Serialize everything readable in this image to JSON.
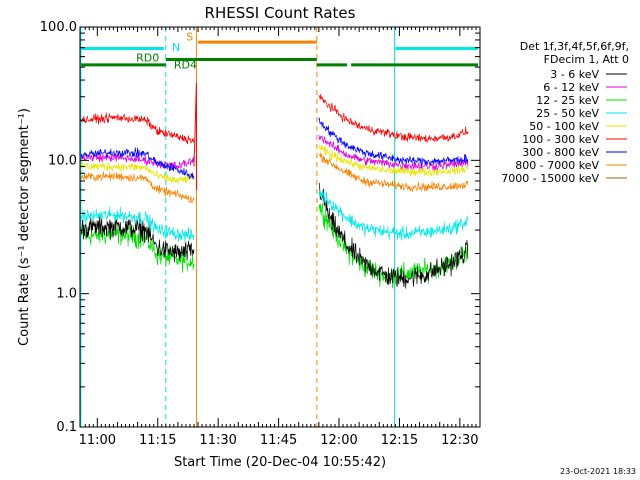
{
  "chart_data": {
    "type": "line",
    "title": "RHESSI Count Rates",
    "xlabel": "Start Time (20-Dec-04 10:55:42)",
    "ylabel": "Count Rate (s⁻¹ detector segment⁻¹)",
    "yscale": "log",
    "ylim": [
      0.1,
      100.0
    ],
    "xlim_minutes": [
      55.7,
      155.0
    ],
    "x_unit": "minutes after 10:00 UT",
    "y_ticks": [
      {
        "value": 0.1,
        "label": "0.1"
      },
      {
        "value": 1.0,
        "label": "1.0"
      },
      {
        "value": 10.0,
        "label": "10.0"
      },
      {
        "value": 100.0,
        "label": "100.0"
      }
    ],
    "x_ticks": [
      {
        "value": 60,
        "label": "11:00"
      },
      {
        "value": 75,
        "label": "11:15"
      },
      {
        "value": 90,
        "label": "11:30"
      },
      {
        "value": 105,
        "label": "11:45"
      },
      {
        "value": 120,
        "label": "12:00"
      },
      {
        "value": 135,
        "label": "12:15"
      },
      {
        "value": 150,
        "label": "12:30"
      }
    ],
    "legend_header": [
      "Det 1f,3f,4f,5f,6f,9f,",
      "FDecim 1, Att 0"
    ],
    "gap": [
      84.8,
      114.7
    ],
    "series": [
      {
        "name": "3 - 6 keV",
        "color": "#000000",
        "seg1": [
          [
            56,
            3.1
          ],
          [
            65,
            3.2
          ],
          [
            72,
            3.0
          ],
          [
            75,
            2.2
          ],
          [
            80,
            2.0
          ],
          [
            84,
            2.1
          ]
        ],
        "seg2": [
          [
            115,
            6.3
          ],
          [
            118,
            3.5
          ],
          [
            122,
            2.3
          ],
          [
            126,
            1.7
          ],
          [
            132,
            1.35
          ],
          [
            136,
            1.3
          ],
          [
            142,
            1.4
          ],
          [
            148,
            1.7
          ],
          [
            152,
            2.1
          ]
        ]
      },
      {
        "name": "6 - 12 keV",
        "color": "#e000e0",
        "seg1": [
          [
            56,
            10.5
          ],
          [
            65,
            10.5
          ],
          [
            72,
            10.0
          ],
          [
            75,
            9.5
          ],
          [
            80,
            9.0
          ],
          [
            84,
            10.0
          ]
        ],
        "seg2": [
          [
            115,
            15.5
          ],
          [
            118,
            13.0
          ],
          [
            122,
            11.0
          ],
          [
            126,
            10.0
          ],
          [
            132,
            9.5
          ],
          [
            136,
            9.2
          ],
          [
            142,
            9.0
          ],
          [
            148,
            9.3
          ],
          [
            152,
            9.6
          ]
        ]
      },
      {
        "name": "12 - 25 keV",
        "color": "#00e000",
        "seg1": [
          [
            56,
            2.7
          ],
          [
            65,
            2.8
          ],
          [
            72,
            2.6
          ],
          [
            75,
            1.95
          ],
          [
            80,
            1.8
          ],
          [
            84,
            1.75
          ]
        ],
        "seg2": [
          [
            115,
            4.6
          ],
          [
            118,
            3.2
          ],
          [
            122,
            2.1
          ],
          [
            126,
            1.6
          ],
          [
            132,
            1.35
          ],
          [
            136,
            1.4
          ],
          [
            142,
            1.5
          ],
          [
            148,
            1.7
          ],
          [
            152,
            2.1
          ]
        ]
      },
      {
        "name": "25 - 50 keV",
        "color": "#00e8e8",
        "seg1": [
          [
            56,
            3.8
          ],
          [
            65,
            3.9
          ],
          [
            72,
            3.7
          ],
          [
            75,
            3.0
          ],
          [
            80,
            2.8
          ],
          [
            84,
            2.7
          ]
        ],
        "seg2": [
          [
            115,
            5.8
          ],
          [
            118,
            4.8
          ],
          [
            122,
            3.7
          ],
          [
            126,
            3.1
          ],
          [
            132,
            2.9
          ],
          [
            136,
            2.8
          ],
          [
            142,
            2.9
          ],
          [
            148,
            3.1
          ],
          [
            152,
            3.5
          ]
        ]
      },
      {
        "name": "50 - 100 keV",
        "color": "#e6e600",
        "seg1": [
          [
            56,
            9.0
          ],
          [
            65,
            9.0
          ],
          [
            72,
            8.8
          ],
          [
            75,
            7.6
          ],
          [
            80,
            7.0
          ],
          [
            84,
            7.5
          ]
        ],
        "seg2": [
          [
            115,
            12.5
          ],
          [
            118,
            11.0
          ],
          [
            122,
            9.8
          ],
          [
            126,
            8.9
          ],
          [
            132,
            8.4
          ],
          [
            136,
            8.3
          ],
          [
            142,
            8.2
          ],
          [
            148,
            8.4
          ],
          [
            152,
            8.7
          ]
        ]
      },
      {
        "name": "100 - 300 keV",
        "color": "#ff0000",
        "seg1": [
          [
            56,
            20.0
          ],
          [
            65,
            21.0
          ],
          [
            72,
            20.0
          ],
          [
            75,
            16.5
          ],
          [
            80,
            15.0
          ],
          [
            84,
            14.0
          ]
        ],
        "seg2": [
          [
            115,
            30.0
          ],
          [
            118,
            25.0
          ],
          [
            122,
            20.0
          ],
          [
            126,
            17.5
          ],
          [
            132,
            16.0
          ],
          [
            136,
            15.0
          ],
          [
            142,
            14.5
          ],
          [
            148,
            15.0
          ],
          [
            152,
            16.5
          ]
        ]
      },
      {
        "name": "300 - 800 keV",
        "color": "#0000ff",
        "seg1": [
          [
            56,
            11.0
          ],
          [
            65,
            11.5
          ],
          [
            72,
            11.2
          ],
          [
            75,
            9.5
          ],
          [
            80,
            8.5
          ],
          [
            84,
            7.5
          ]
        ],
        "seg2": [
          [
            115,
            20.0
          ],
          [
            118,
            16.0
          ],
          [
            122,
            13.0
          ],
          [
            126,
            11.5
          ],
          [
            132,
            10.5
          ],
          [
            136,
            10.0
          ],
          [
            142,
            9.8
          ],
          [
            148,
            10.0
          ],
          [
            152,
            10.3
          ]
        ]
      },
      {
        "name": "800 - 7000 keV",
        "color": "#ff8000",
        "seg1": [
          [
            56,
            7.5
          ],
          [
            65,
            7.6
          ],
          [
            72,
            7.3
          ],
          [
            75,
            6.0
          ],
          [
            80,
            5.5
          ],
          [
            84,
            5.0
          ]
        ],
        "seg2": [
          [
            115,
            11.0
          ],
          [
            118,
            9.5
          ],
          [
            122,
            8.0
          ],
          [
            126,
            7.0
          ],
          [
            132,
            6.6
          ],
          [
            136,
            6.4
          ],
          [
            142,
            6.3
          ],
          [
            148,
            6.4
          ],
          [
            152,
            6.6
          ]
        ]
      },
      {
        "name": "7000 - 15000 keV",
        "color": "#a06000",
        "seg1": [],
        "seg2": []
      }
    ],
    "vertical_markers": [
      {
        "x": 55.9,
        "color": "#00e0e0",
        "style": "solid"
      },
      {
        "x": 77.0,
        "color": "#00e0e0",
        "style": "dashed"
      },
      {
        "x": 84.6,
        "color": "#ff8000",
        "style": "solid"
      },
      {
        "x": 114.5,
        "color": "#ff8000",
        "style": "dashed"
      },
      {
        "x": 133.8,
        "color": "#00e0e0",
        "style": "solid"
      },
      {
        "x": 155.0,
        "color": "#00e0e0",
        "style": "dashed"
      }
    ],
    "flag_bars": [
      {
        "label": "N",
        "color": "#00e8e8",
        "segments": [
          [
            56.0,
            76.5
          ],
          [
            134.0,
            154.5
          ]
        ],
        "level": 69.0
      },
      {
        "label": "S",
        "color": "#ff8000",
        "segments": [
          [
            85.0,
            114.5
          ]
        ],
        "level": 77.0
      },
      {
        "label": "RD0",
        "color": "#008000",
        "segments": [
          [
            77.0,
            114.5
          ]
        ],
        "level": 57.0
      },
      {
        "label": "RD4",
        "color": "#008000",
        "segments": [
          [
            56.0,
            77.0
          ],
          [
            114.5,
            122.0
          ],
          [
            123.0,
            154.5
          ]
        ],
        "level": 52.0
      }
    ],
    "flag_labels": {
      "N": "N",
      "S": "S",
      "RD0": "RD0",
      "RD4": "RD4"
    },
    "spike": {
      "x": 84.6,
      "peak": 38.0
    }
  },
  "footer": {
    "date_stamp": "23-Oct-2021 18:33"
  }
}
